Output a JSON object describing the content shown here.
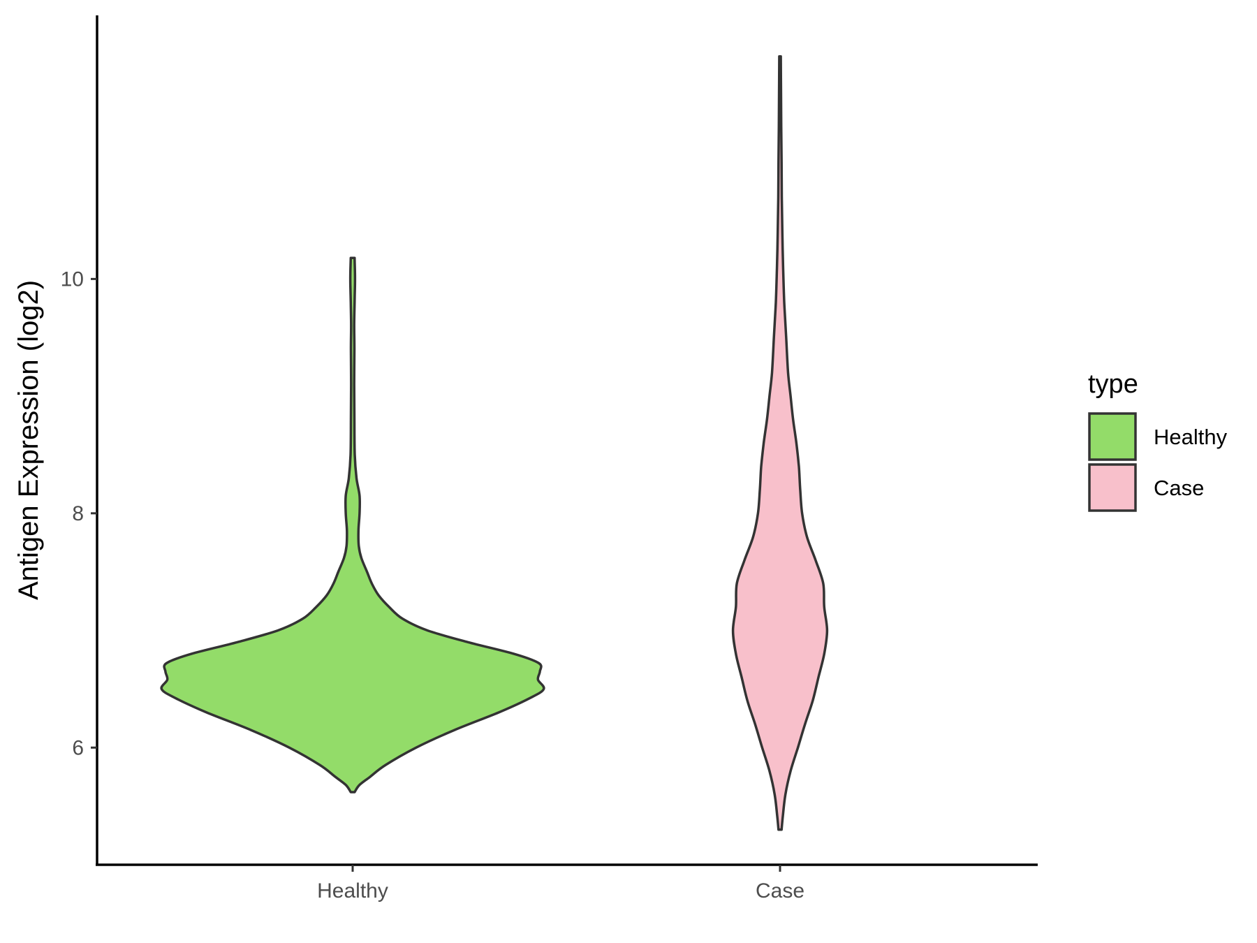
{
  "chart_data": {
    "type": "violin",
    "title": "",
    "xlabel": "",
    "ylabel": "Antigen Expression (log2)",
    "categories": [
      "Healthy",
      "Case"
    ],
    "ylim": [
      5.0,
      12.25
    ],
    "yticks": [
      6,
      8,
      10
    ],
    "grid": false,
    "legend": {
      "title": "type",
      "position": "right",
      "entries": [
        {
          "label": "Healthy",
          "color": "#93DC69"
        },
        {
          "label": "Case",
          "color": "#F8C0CB"
        }
      ]
    },
    "series": [
      {
        "category": "Healthy",
        "color": "#93DC69",
        "density": [
          [
            5.62,
            0.01
          ],
          [
            5.68,
            0.035
          ],
          [
            5.75,
            0.09
          ],
          [
            5.85,
            0.17
          ],
          [
            6.0,
            0.33
          ],
          [
            6.15,
            0.53
          ],
          [
            6.3,
            0.76
          ],
          [
            6.42,
            0.92
          ],
          [
            6.5,
            0.995
          ],
          [
            6.58,
            0.965
          ],
          [
            6.65,
            0.975
          ],
          [
            6.72,
            0.97
          ],
          [
            6.8,
            0.84
          ],
          [
            6.9,
            0.6
          ],
          [
            7.0,
            0.39
          ],
          [
            7.1,
            0.26
          ],
          [
            7.2,
            0.19
          ],
          [
            7.3,
            0.135
          ],
          [
            7.4,
            0.1
          ],
          [
            7.5,
            0.075
          ],
          [
            7.62,
            0.045
          ],
          [
            7.72,
            0.032
          ],
          [
            7.85,
            0.03
          ],
          [
            8.0,
            0.036
          ],
          [
            8.15,
            0.036
          ],
          [
            8.3,
            0.02
          ],
          [
            8.5,
            0.011
          ],
          [
            8.8,
            0.009
          ],
          [
            9.1,
            0.008
          ],
          [
            9.4,
            0.009
          ],
          [
            9.6,
            0.008
          ],
          [
            9.8,
            0.01
          ],
          [
            9.95,
            0.012
          ],
          [
            10.05,
            0.012
          ],
          [
            10.18,
            0.01
          ]
        ]
      },
      {
        "category": "Case",
        "color": "#F8C0CB",
        "density": [
          [
            5.3,
            0.008
          ],
          [
            5.42,
            0.015
          ],
          [
            5.6,
            0.028
          ],
          [
            5.8,
            0.055
          ],
          [
            6.0,
            0.093
          ],
          [
            6.2,
            0.13
          ],
          [
            6.4,
            0.17
          ],
          [
            6.6,
            0.2
          ],
          [
            6.8,
            0.23
          ],
          [
            7.0,
            0.245
          ],
          [
            7.2,
            0.23
          ],
          [
            7.4,
            0.225
          ],
          [
            7.6,
            0.185
          ],
          [
            7.8,
            0.14
          ],
          [
            8.0,
            0.115
          ],
          [
            8.2,
            0.105
          ],
          [
            8.4,
            0.098
          ],
          [
            8.6,
            0.085
          ],
          [
            8.8,
            0.068
          ],
          [
            9.0,
            0.055
          ],
          [
            9.2,
            0.042
          ],
          [
            9.5,
            0.032
          ],
          [
            9.8,
            0.022
          ],
          [
            10.1,
            0.016
          ],
          [
            10.4,
            0.012
          ],
          [
            10.7,
            0.009
          ],
          [
            11.0,
            0.008
          ],
          [
            11.3,
            0.006
          ],
          [
            11.6,
            0.005
          ],
          [
            11.9,
            0.004
          ]
        ]
      }
    ]
  }
}
